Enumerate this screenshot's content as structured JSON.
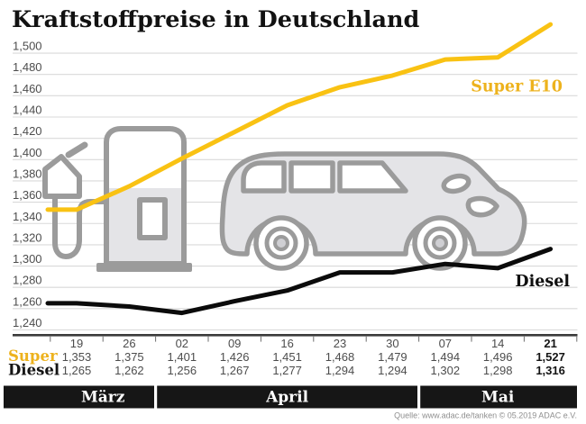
{
  "title": "Kraftstoffpreise in Deutschland",
  "source": "Quelle: www.adac.de/tanken   © 05.2019   ADAC e.V.",
  "colors": {
    "accent_line": "#F9C213",
    "accent_text": "#EDB21D",
    "line_dark": "#0b0b0b",
    "dark_text": "#141414",
    "grid": "#d9d9d9",
    "axis": "#3a3a3a",
    "tick": "#6e6e6e",
    "muted_text": "#4d4d4d",
    "band_bg": "#161616",
    "band_text": "#ffffff",
    "icon_stroke": "#9b9b9b",
    "icon_fill": "#e4e4e7",
    "source_text": "#8f8f8f"
  },
  "chart_data": {
    "type": "line",
    "title": "Kraftstoffpreise in Deutschland",
    "categories": [
      "19",
      "26",
      "02",
      "09",
      "16",
      "23",
      "30",
      "07",
      "14",
      "21"
    ],
    "months": [
      {
        "label": "März",
        "cols": [
          0,
          1
        ]
      },
      {
        "label": "April",
        "cols": [
          2,
          6
        ]
      },
      {
        "label": "Mai",
        "cols": [
          7,
          9
        ]
      }
    ],
    "ylim": [
      1240,
      1500
    ],
    "ytick_step": 20,
    "grid": true,
    "legend_position": "inline-right",
    "series": [
      {
        "name": "Super",
        "label": "Super E10",
        "values": [
          1353,
          1375,
          1401,
          1426,
          1451,
          1468,
          1479,
          1494,
          1496,
          1527
        ]
      },
      {
        "name": "Diesel",
        "label": "Diesel",
        "values": [
          1265,
          1262,
          1256,
          1267,
          1277,
          1294,
          1294,
          1302,
          1298,
          1316
        ]
      }
    ]
  }
}
